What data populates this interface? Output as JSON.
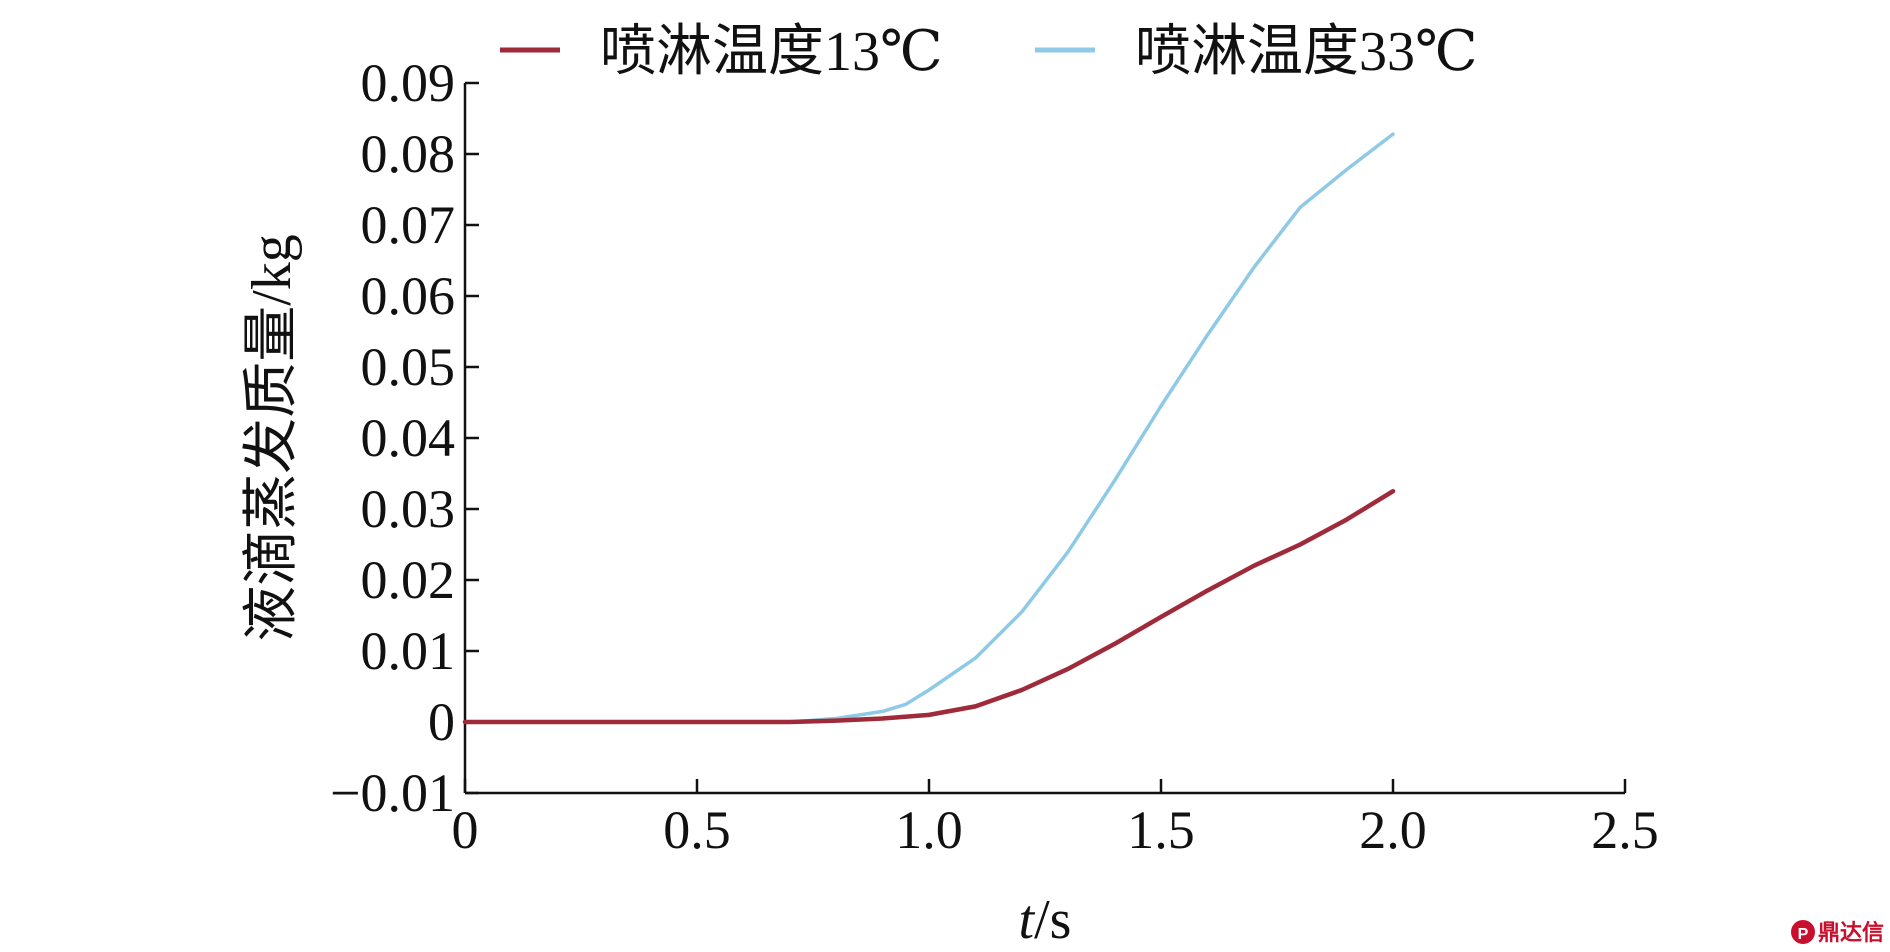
{
  "chart_data": {
    "type": "line",
    "xlabel_italic": "t",
    "xlabel_unit": "/s",
    "ylabel": "液滴蒸发质量/kg",
    "xlim": [
      0,
      2.5
    ],
    "ylim": [
      -0.01,
      0.09
    ],
    "x_ticks": [
      0,
      0.5,
      1.0,
      1.5,
      2.0,
      2.5
    ],
    "x_tick_labels": [
      "0",
      "0.5",
      "1.0",
      "1.5",
      "2.0",
      "2.5"
    ],
    "y_ticks": [
      -0.01,
      0,
      0.01,
      0.02,
      0.03,
      0.04,
      0.05,
      0.06,
      0.07,
      0.08,
      0.09
    ],
    "y_tick_labels": [
      "−0.01",
      "0",
      "0.01",
      "0.02",
      "0.03",
      "0.04",
      "0.05",
      "0.06",
      "0.07",
      "0.08",
      "0.09"
    ],
    "grid": false,
    "legend_position": "top",
    "series": [
      {
        "name": "喷淋温度13℃",
        "color": "#9e2a3a",
        "x": [
          0,
          0.5,
          0.7,
          0.8,
          0.9,
          1.0,
          1.1,
          1.2,
          1.3,
          1.4,
          1.5,
          1.6,
          1.7,
          1.8,
          1.9,
          2.0
        ],
        "y": [
          0,
          0,
          0,
          0.0002,
          0.0005,
          0.001,
          0.0022,
          0.0045,
          0.0075,
          0.011,
          0.0148,
          0.0185,
          0.022,
          0.025,
          0.0285,
          0.0325
        ]
      },
      {
        "name": "喷淋温度33℃",
        "color": "#8ecae6",
        "x": [
          0,
          0.5,
          0.7,
          0.8,
          0.9,
          0.95,
          1.0,
          1.1,
          1.2,
          1.3,
          1.4,
          1.5,
          1.6,
          1.7,
          1.8,
          1.9,
          2.0
        ],
        "y": [
          0,
          0,
          0,
          0.0005,
          0.0015,
          0.0025,
          0.0045,
          0.009,
          0.0155,
          0.024,
          0.034,
          0.0445,
          0.0545,
          0.064,
          0.0725,
          0.0778,
          0.0828
        ]
      }
    ]
  },
  "watermark": {
    "text": "鼎达信",
    "icon": "seal-icon"
  }
}
